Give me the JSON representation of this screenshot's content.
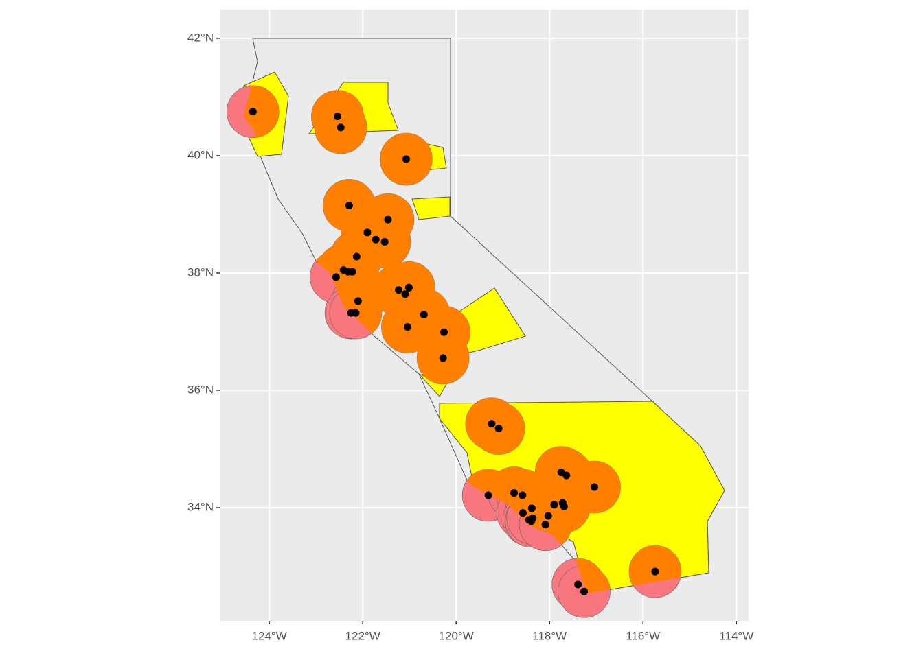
{
  "chart_data": {
    "type": "map",
    "xlim": [
      -125.06,
      -113.74
    ],
    "ylim": [
      32.07,
      42.49
    ],
    "xticks": [
      {
        "value": -124,
        "label": "124°W"
      },
      {
        "value": -122,
        "label": "122°W"
      },
      {
        "value": -120,
        "label": "120°W"
      },
      {
        "value": -118,
        "label": "118°W"
      },
      {
        "value": -116,
        "label": "116°W"
      },
      {
        "value": -114,
        "label": "114°W"
      }
    ],
    "yticks": [
      {
        "value": 34,
        "label": "34°N"
      },
      {
        "value": 36,
        "label": "36°N"
      },
      {
        "value": 38,
        "label": "38°N"
      },
      {
        "value": 40,
        "label": "40°N"
      },
      {
        "value": 42,
        "label": "42°N"
      }
    ],
    "grid": true,
    "color": "#000000",
    "x": [
      -124.35,
      -122.54,
      -122.47,
      -121.07,
      -122.29,
      -121.46,
      -121.9,
      -121.72,
      -121.53,
      -122.13,
      -122.41,
      -122.31,
      -122.22,
      -122.57,
      -121.23,
      -121.01,
      -121.09,
      -122.1,
      -122.25,
      -122.15,
      -120.69,
      -121.04,
      -120.26,
      -120.28,
      -119.24,
      -119.09,
      -117.75,
      -117.64,
      -117.04,
      -119.31,
      -118.76,
      -118.58,
      -117.9,
      -117.72,
      -117.69,
      -118.57,
      -118.38,
      -118.44,
      -118.39,
      -118.36,
      -118.03,
      -118.09,
      -115.74,
      -117.39,
      -117.26
    ],
    "values": [
      40.75,
      40.67,
      40.48,
      39.94,
      39.15,
      38.91,
      38.69,
      38.57,
      38.53,
      38.28,
      38.05,
      38.02,
      38.02,
      37.93,
      37.71,
      37.75,
      37.64,
      37.52,
      37.32,
      37.32,
      37.29,
      37.08,
      36.99,
      36.55,
      35.43,
      35.35,
      34.6,
      34.55,
      34.35,
      34.21,
      34.25,
      34.21,
      34.05,
      34.08,
      34.02,
      33.91,
      33.99,
      33.79,
      33.77,
      33.82,
      33.86,
      33.71,
      32.91,
      32.69,
      32.57
    ]
  }
}
